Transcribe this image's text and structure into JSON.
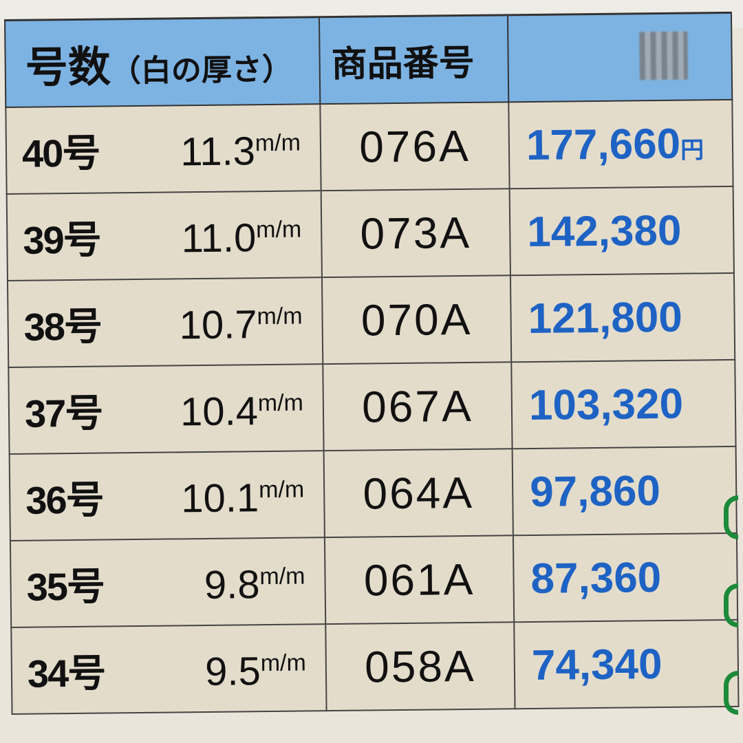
{
  "header": {
    "size_label": "号数",
    "thickness_label": "（白の厚さ）",
    "code_label": "商品番号"
  },
  "unit": "m/m",
  "currency": "円",
  "colors": {
    "header_bg": "#7db3e3",
    "price": "#1e63c4",
    "row_bg": "#e4dccb"
  },
  "rows": [
    {
      "size": "40号",
      "thickness": "11.3",
      "code": "076A",
      "price": "177,660"
    },
    {
      "size": "39号",
      "thickness": "11.0",
      "code": "073A",
      "price": "142,380"
    },
    {
      "size": "38号",
      "thickness": "10.7",
      "code": "070A",
      "price": "121,800"
    },
    {
      "size": "37号",
      "thickness": "10.4",
      "code": "067A",
      "price": "103,320"
    },
    {
      "size": "36号",
      "thickness": "10.1",
      "code": "064A",
      "price": "97,860"
    },
    {
      "size": "35号",
      "thickness": "9.8",
      "code": "061A",
      "price": "87,360"
    },
    {
      "size": "34号",
      "thickness": "9.5",
      "code": "058A",
      "price": "74,340"
    }
  ]
}
